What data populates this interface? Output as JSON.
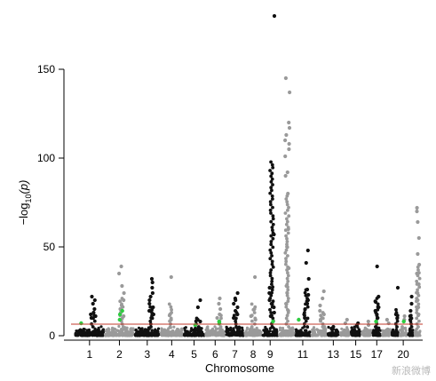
{
  "chart_data": {
    "type": "scatter",
    "subtype": "manhattan",
    "title": "",
    "xlabel": "Chromosome",
    "ylabel_prefix": "−log",
    "ylabel_sub": "10",
    "ylabel_suffix": "(p)",
    "ylim": [
      0,
      180
    ],
    "yticks": [
      0,
      50,
      100,
      150
    ],
    "significance_threshold": 6.5,
    "threshold_color": "#c0392b",
    "odd_color": "#111111",
    "even_color": "#9a9a9a",
    "highlight_color": "#2ecc40",
    "x_tick_labels": [
      "1",
      "2",
      "3",
      "4",
      "5",
      "6",
      "7",
      "8",
      "9",
      "11",
      "13",
      "15",
      "17",
      "20"
    ],
    "chromosomes": [
      {
        "chr": 1,
        "label": "1",
        "peaks": [
          22,
          20,
          18,
          15,
          13,
          12,
          11,
          10
        ],
        "highlight": [
          7
        ]
      },
      {
        "chr": 2,
        "label": "2",
        "peaks": [
          39,
          35,
          28,
          24,
          20,
          17,
          15,
          13,
          11
        ],
        "highlight": [
          14,
          12,
          9
        ]
      },
      {
        "chr": 3,
        "label": "3",
        "peaks": [
          32,
          30,
          27,
          24,
          22,
          20,
          18,
          16,
          14,
          12,
          10
        ],
        "highlight": []
      },
      {
        "chr": 4,
        "label": "4",
        "peaks": [
          33,
          12,
          9
        ],
        "highlight": []
      },
      {
        "chr": 5,
        "label": "5",
        "peaks": [
          20,
          16,
          9,
          8
        ],
        "highlight": [
          6
        ]
      },
      {
        "chr": 6,
        "label": "6",
        "peaks": [
          21,
          18,
          15,
          12,
          10
        ],
        "highlight": [
          8,
          7
        ]
      },
      {
        "chr": 7,
        "label": "7",
        "peaks": [
          24,
          21,
          20,
          18,
          16,
          14,
          12,
          10
        ],
        "highlight": []
      },
      {
        "chr": 8,
        "label": "8",
        "peaks": [
          33,
          15,
          11,
          9
        ],
        "highlight": []
      },
      {
        "chr": 9,
        "label": "9",
        "peaks": [
          180,
          57,
          27,
          24,
          20,
          18,
          16,
          13,
          11
        ],
        "highlight": [
          8
        ]
      },
      {
        "chr": 10,
        "label": "",
        "peaks": [
          145,
          137,
          120,
          117,
          113,
          110,
          108,
          105,
          101,
          92,
          90,
          80,
          60,
          50,
          38,
          28,
          24,
          18,
          14
        ],
        "highlight": []
      },
      {
        "chr": 11,
        "label": "11",
        "peaks": [
          48,
          41,
          32,
          26,
          23,
          20,
          18,
          15,
          12,
          10
        ],
        "highlight": [
          9
        ]
      },
      {
        "chr": 12,
        "label": "",
        "peaks": [
          25,
          21,
          17,
          14,
          12,
          10,
          9
        ],
        "highlight": []
      },
      {
        "chr": 13,
        "label": "13",
        "peaks": [
          5,
          4
        ],
        "highlight": []
      },
      {
        "chr": 14,
        "label": "",
        "peaks": [
          9,
          7
        ],
        "highlight": []
      },
      {
        "chr": 15,
        "label": "15",
        "peaks": [
          7,
          6
        ],
        "highlight": []
      },
      {
        "chr": 16,
        "label": "",
        "peaks": [
          8,
          6
        ],
        "highlight": []
      },
      {
        "chr": 17,
        "label": "17",
        "peaks": [
          39,
          22,
          19,
          16,
          14,
          12,
          10
        ],
        "highlight": [
          8
        ]
      },
      {
        "chr": 18,
        "label": "",
        "peaks": [
          9,
          7
        ],
        "highlight": []
      },
      {
        "chr": 19,
        "label": "",
        "peaks": [
          27,
          12,
          10
        ],
        "highlight": []
      },
      {
        "chr": 20,
        "label": "20",
        "peaks": [
          11,
          9
        ],
        "highlight": [
          8
        ]
      },
      {
        "chr": 21,
        "label": "",
        "peaks": [
          22,
          18,
          14,
          11,
          9
        ],
        "highlight": []
      },
      {
        "chr": 22,
        "label": "",
        "peaks": [
          72,
          70,
          64,
          55,
          46,
          40,
          35,
          29,
          24,
          20,
          16,
          12
        ],
        "highlight": []
      }
    ],
    "grid": false,
    "legend": "none"
  },
  "watermark": "新浪微博"
}
